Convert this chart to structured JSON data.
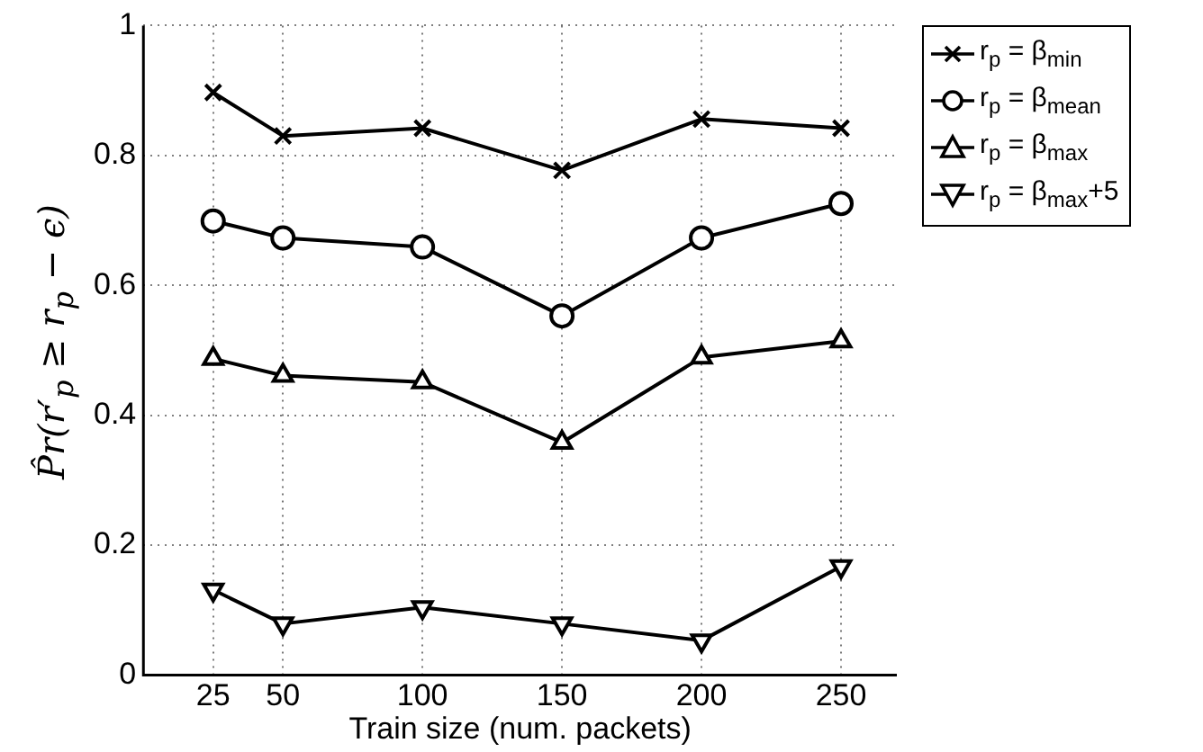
{
  "chart_data": {
    "type": "line",
    "xlabel": "Train size (num. packets)",
    "ylabel": "P̂r(r′$_{p}$ ≥ r$_{p}$ − ϵ)",
    "x": [
      25,
      50,
      100,
      150,
      200,
      250
    ],
    "xlim": [
      0,
      270
    ],
    "xticks": [
      25,
      50,
      100,
      150,
      200,
      250
    ],
    "ylim": [
      0,
      1
    ],
    "yticks": [
      0,
      0.2,
      0.4,
      0.6,
      0.8,
      1
    ],
    "grid": true,
    "legend": "top right",
    "line_style": "solid",
    "series": [
      {
        "name": "r$_{p}$ = β$_{min}$",
        "color": "#000000",
        "marker": "cross",
        "values": [
          0.897,
          0.83,
          0.842,
          0.777,
          0.856,
          0.842
        ]
      },
      {
        "name": "r$_{p}$ = β$_{mean}$",
        "color": "#000000",
        "marker": "circle",
        "values": [
          0.699,
          0.673,
          0.659,
          0.553,
          0.673,
          0.726
        ]
      },
      {
        "name": "r$_{p}$ = β$_{max}$",
        "color": "#000000",
        "marker": "triangle",
        "values": [
          0.487,
          0.461,
          0.451,
          0.358,
          0.489,
          0.514
        ]
      },
      {
        "name": "r$_{p}$ = β$_{max}$+5",
        "color": "#000000",
        "marker": "triangle-down",
        "values": [
          0.131,
          0.079,
          0.104,
          0.079,
          0.053,
          0.167
        ]
      }
    ]
  }
}
